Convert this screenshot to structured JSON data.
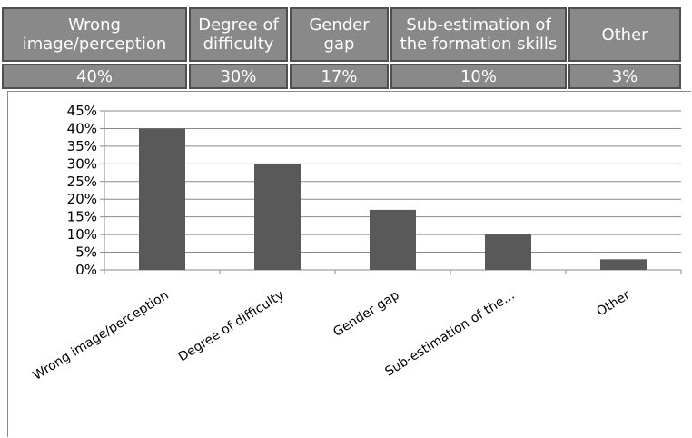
{
  "table": {
    "headers": [
      "Wrong\nimage/perception",
      "Degree of\ndifficulty",
      "Gender gap",
      "Sub-estimation of\nthe formation skills",
      "Other"
    ],
    "values": [
      "40%",
      "30%",
      "17%",
      "10%",
      "3%"
    ]
  },
  "chart_data": {
    "type": "bar",
    "categories": [
      "Wrong image/perception",
      "Degree of difficulty",
      "Gender gap",
      "Sub-estimation of the...",
      "Other"
    ],
    "values": [
      40,
      30,
      17,
      10,
      3
    ],
    "ylim": [
      0,
      45
    ],
    "yticks": [
      "0%",
      "5%",
      "10%",
      "15%",
      "20%",
      "25%",
      "30%",
      "35%",
      "40%",
      "45%"
    ],
    "grid": true,
    "bar_color": "#595959",
    "title": "",
    "xlabel": "",
    "ylabel": ""
  }
}
